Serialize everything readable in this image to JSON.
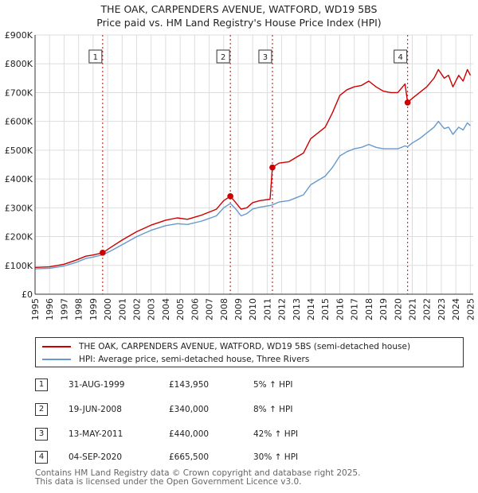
{
  "title": {
    "line1": "THE OAK, CARPENDERS AVENUE, WATFORD, WD19 5BS",
    "line2": "Price paid vs. HM Land Registry's House Price Index (HPI)"
  },
  "colors": {
    "property": "#cc0000",
    "hpi": "#6699cc",
    "marker_line": "#cc0000",
    "axis": "#333333"
  },
  "chart_data": {
    "type": "line",
    "title": "Price paid vs. HM Land Registry's House Price Index (HPI)",
    "xlabel": "",
    "ylabel": "",
    "xlim": [
      1995,
      2025.2
    ],
    "ylim": [
      0,
      900000
    ],
    "x_ticks": [
      1995,
      1996,
      1997,
      1998,
      1999,
      2000,
      2001,
      2002,
      2003,
      2004,
      2005,
      2006,
      2007,
      2008,
      2009,
      2010,
      2011,
      2012,
      2013,
      2014,
      2015,
      2016,
      2017,
      2018,
      2019,
      2020,
      2021,
      2022,
      2023,
      2024,
      2025
    ],
    "x_tick_labels": [
      "1995",
      "1996",
      "1997",
      "1998",
      "1999",
      "2000",
      "2001",
      "2002",
      "2003",
      "2004",
      "2005",
      "2006",
      "2007",
      "2008",
      "2009",
      "2010",
      "2011",
      "2012",
      "2013",
      "2014",
      "2015",
      "2016",
      "2017",
      "2018",
      "2019",
      "2020",
      "2021",
      "2022",
      "2023",
      "2024",
      "2025"
    ],
    "y_ticks": [
      0,
      100000,
      200000,
      300000,
      400000,
      500000,
      600000,
      700000,
      800000,
      900000
    ],
    "y_tick_labels": [
      "£0",
      "£100K",
      "£200K",
      "£300K",
      "£400K",
      "£500K",
      "£600K",
      "£700K",
      "£800K",
      "£900K"
    ],
    "grid": true,
    "series": [
      {
        "name": "THE OAK, CARPENDERS AVENUE, WATFORD, WD19 5BS (semi-detached house)",
        "color": "#cc0000",
        "x": [
          1995.0,
          1996.0,
          1997.0,
          1997.8,
          1998.5,
          1999.0,
          1999.66,
          2000.2,
          2001.0,
          2002.0,
          2003.0,
          2004.0,
          2004.8,
          2005.5,
          2006.5,
          2007.5,
          2008.0,
          2008.46,
          2008.8,
          2009.2,
          2009.6,
          2010.0,
          2010.5,
          2011.2,
          2011.36,
          2011.8,
          2012.5,
          2013.0,
          2013.5,
          2014.0,
          2014.5,
          2015.0,
          2015.5,
          2016.0,
          2016.5,
          2017.0,
          2017.5,
          2018.0,
          2018.5,
          2019.0,
          2019.5,
          2020.0,
          2020.5,
          2020.68,
          2021.0,
          2021.5,
          2022.0,
          2022.5,
          2022.8,
          2023.2,
          2023.5,
          2023.8,
          2024.2,
          2024.5,
          2024.8,
          2025.0
        ],
        "y": [
          93000,
          95000,
          104000,
          118000,
          132000,
          136000,
          143950,
          162000,
          188000,
          217000,
          240000,
          257000,
          265000,
          260000,
          275000,
          295000,
          325000,
          340000,
          320000,
          295000,
          300000,
          318000,
          325000,
          330000,
          440000,
          455000,
          460000,
          475000,
          490000,
          540000,
          560000,
          580000,
          630000,
          690000,
          710000,
          720000,
          725000,
          740000,
          720000,
          705000,
          700000,
          700000,
          730000,
          665500,
          680000,
          700000,
          720000,
          750000,
          780000,
          750000,
          760000,
          720000,
          760000,
          740000,
          780000,
          760000
        ]
      },
      {
        "name": "HPI: Average price, semi-detached house, Three Rivers",
        "color": "#6699cc",
        "x": [
          1995.0,
          1996.0,
          1997.0,
          1997.8,
          1998.5,
          1999.0,
          1999.66,
          2000.2,
          2001.0,
          2002.0,
          2003.0,
          2004.0,
          2004.8,
          2005.5,
          2006.5,
          2007.5,
          2008.0,
          2008.46,
          2008.8,
          2009.2,
          2009.6,
          2010.0,
          2010.5,
          2011.2,
          2011.36,
          2011.8,
          2012.5,
          2013.0,
          2013.5,
          2014.0,
          2014.5,
          2015.0,
          2015.5,
          2016.0,
          2016.5,
          2017.0,
          2017.5,
          2018.0,
          2018.5,
          2019.0,
          2019.5,
          2020.0,
          2020.5,
          2020.68,
          2021.0,
          2021.5,
          2022.0,
          2022.5,
          2022.8,
          2023.2,
          2023.5,
          2023.8,
          2024.2,
          2024.5,
          2024.8,
          2025.0
        ],
        "y": [
          88000,
          90000,
          98000,
          110000,
          124000,
          129000,
          137000,
          150000,
          172000,
          200000,
          222000,
          238000,
          245000,
          242000,
          254000,
          272000,
          300000,
          315000,
          298000,
          272000,
          280000,
          296000,
          302000,
          308000,
          310000,
          320000,
          325000,
          335000,
          345000,
          380000,
          395000,
          410000,
          440000,
          480000,
          495000,
          505000,
          510000,
          520000,
          510000,
          505000,
          505000,
          505000,
          515000,
          512000,
          525000,
          540000,
          560000,
          580000,
          600000,
          575000,
          580000,
          555000,
          580000,
          570000,
          595000,
          585000
        ]
      }
    ],
    "points": [
      {
        "id": "1",
        "x": 1999.66,
        "y": 143950
      },
      {
        "id": "2",
        "x": 2008.46,
        "y": 340000
      },
      {
        "id": "3",
        "x": 2011.36,
        "y": 440000
      },
      {
        "id": "4",
        "x": 2020.68,
        "y": 665500
      }
    ],
    "annotations": [
      {
        "label": "1",
        "x": 1999.66
      },
      {
        "label": "2",
        "x": 2008.46
      },
      {
        "label": "3",
        "x": 2011.36
      },
      {
        "label": "4",
        "x": 2020.68
      }
    ]
  },
  "legend": {
    "items": [
      {
        "label": "THE OAK, CARPENDERS AVENUE, WATFORD, WD19 5BS (semi-detached house)",
        "color": "#cc0000"
      },
      {
        "label": "HPI: Average price, semi-detached house, Three Rivers",
        "color": "#6699cc"
      }
    ]
  },
  "sales": [
    {
      "num": "1",
      "date": "31-AUG-1999",
      "price": "£143,950",
      "hpi": "5% ↑ HPI"
    },
    {
      "num": "2",
      "date": "19-JUN-2008",
      "price": "£340,000",
      "hpi": "8% ↑ HPI"
    },
    {
      "num": "3",
      "date": "13-MAY-2011",
      "price": "£440,000",
      "hpi": "42% ↑ HPI"
    },
    {
      "num": "4",
      "date": "04-SEP-2020",
      "price": "£665,500",
      "hpi": "30% ↑ HPI"
    }
  ],
  "footer": {
    "line1": "Contains HM Land Registry data © Crown copyright and database right 2025.",
    "line2": "This data is licensed under the Open Government Licence v3.0."
  }
}
